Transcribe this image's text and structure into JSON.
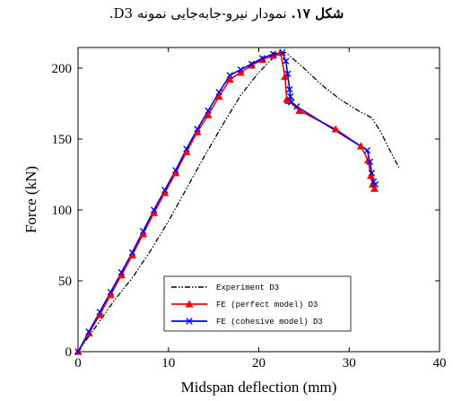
{
  "caption": {
    "label": "شکل ۱۷.",
    "text": "نمودار نیرو-جابه‌جایی نمونه D3."
  },
  "chart_data": {
    "type": "line",
    "xlabel": "Midspan deflection (mm)",
    "ylabel": "Force (kN)",
    "xlim": [
      0,
      40
    ],
    "ylim": [
      0,
      215
    ],
    "xticks": [
      0,
      10,
      20,
      30,
      40
    ],
    "yticks": [
      0,
      50,
      100,
      150,
      200
    ],
    "grid": false,
    "legend_position": "bottom-center",
    "series": [
      {
        "name": "Experiment D3",
        "color": "#000000",
        "style": "dash-dot",
        "marker": "none",
        "x": [
          0,
          2,
          4,
          6,
          8,
          10,
          12,
          14,
          16,
          18,
          20,
          22,
          23,
          25,
          27,
          29,
          31,
          32.5,
          33.5,
          34.5,
          35.5
        ],
        "y": [
          0,
          18,
          36,
          52,
          71,
          92,
          115,
          138,
          160,
          181,
          197,
          210,
          211,
          200,
          188,
          178,
          170,
          165,
          155,
          142,
          130
        ]
      },
      {
        "name": "FE (perfect model) D3",
        "color": "#ff0000",
        "style": "solid",
        "marker": "triangle",
        "x": [
          0,
          1.2,
          2.4,
          3.6,
          4.8,
          6,
          7.2,
          8.4,
          9.6,
          10.8,
          12,
          13.2,
          14.4,
          15.6,
          16.8,
          18,
          19.2,
          20.4,
          21.6,
          22.4,
          22.9,
          23.1,
          23.3,
          24.5,
          28.5,
          31.3,
          32.1,
          32.4,
          32.6,
          32.8
        ],
        "y": [
          0,
          13,
          26,
          40,
          54,
          68,
          83,
          98,
          112,
          126,
          141,
          155,
          167,
          180,
          192,
          197,
          202,
          206,
          209,
          211,
          194,
          178,
          177,
          170,
          157,
          145,
          135,
          124,
          118,
          115
        ]
      },
      {
        "name": "FE (cohesive model) D3",
        "color": "#0000ff",
        "style": "solid",
        "marker": "x",
        "x": [
          0,
          1.2,
          2.4,
          3.6,
          4.8,
          6,
          7.2,
          8.4,
          9.6,
          10.8,
          12,
          13.2,
          14.4,
          15.6,
          16.8,
          18,
          19.2,
          20.4,
          21.6,
          22.6,
          23.0,
          23.2,
          23.4,
          23.5,
          23.6,
          24.2,
          32.0,
          32.3,
          32.5,
          32.7,
          32.9
        ],
        "y": [
          0,
          14,
          28,
          42,
          56,
          70,
          85,
          100,
          114,
          128,
          143,
          157,
          170,
          183,
          195,
          199,
          203,
          207,
          210,
          211,
          205,
          196,
          185,
          180,
          176,
          173,
          142,
          134,
          126,
          120,
          118
        ]
      }
    ]
  }
}
